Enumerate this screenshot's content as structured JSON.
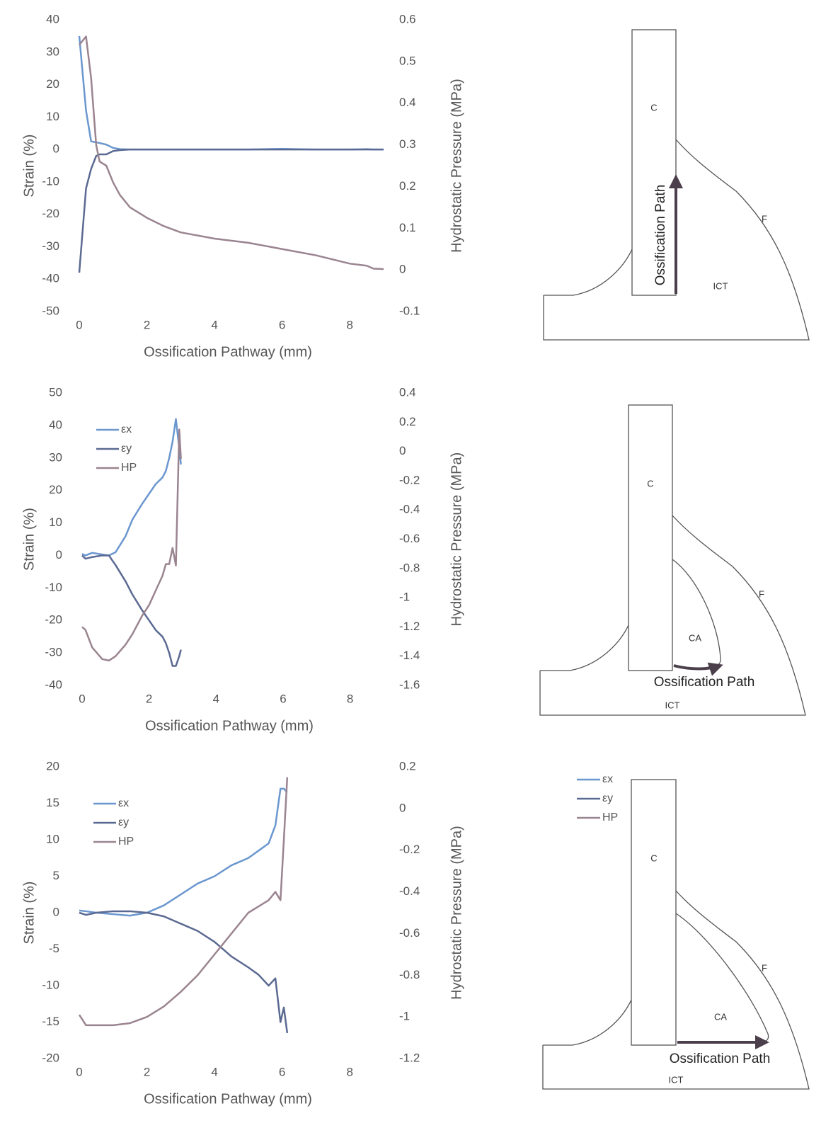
{
  "chart_data": [
    {
      "type": "line",
      "xlabel": "Ossification Pathway (mm)",
      "ylabel": "Strain (%)",
      "y2label": "Hydrostatic Pressure (MPa)",
      "x": [
        0,
        0.2,
        0.35,
        0.5,
        0.6,
        0.8,
        1,
        1.2,
        1.5,
        2,
        2.5,
        3,
        4,
        5,
        6,
        7,
        8,
        8.5,
        8.7,
        9
      ],
      "series": [
        {
          "color": "#6b97cf",
          "values": [
            35,
            12,
            2.5,
            2.2,
            2,
            1.5,
            0.5,
            0.1,
            0,
            0,
            0,
            0,
            0,
            0,
            0.2,
            0,
            0,
            0.1,
            0,
            0
          ]
        },
        {
          "color": "#5b6a92",
          "values": [
            -38,
            -12,
            -6,
            -2,
            -1.5,
            -1.5,
            -0.5,
            -0.2,
            0,
            0,
            0,
            0,
            0,
            0,
            0,
            0,
            0,
            0,
            0,
            0
          ]
        },
        {
          "color": "#9a8490",
          "axis": "y2",
          "values": [
            0.54,
            0.56,
            0.46,
            0.3,
            0.26,
            0.25,
            0.21,
            0.18,
            0.15,
            0.125,
            0.105,
            0.09,
            0.075,
            0.065,
            0.05,
            0.035,
            0.015,
            0.01,
            0.003,
            0.002
          ]
        }
      ],
      "xlim": [
        0,
        9
      ],
      "xticks": [
        0,
        2,
        4,
        6,
        8
      ],
      "ylim": [
        -50,
        40
      ],
      "yticks": [
        -50,
        -40,
        -30,
        -20,
        -10,
        0,
        10,
        20,
        30,
        40
      ],
      "y2lim": [
        -0.1,
        0.6
      ],
      "y2ticks": [
        -0.1,
        0,
        0.1,
        0.2,
        0.3,
        0.4,
        0.5,
        0.6
      ]
    },
    {
      "type": "line",
      "xlabel": "Ossification Pathway (mm)",
      "ylabel": "Strain (%)",
      "y2label": "Hydrostatic Pressure (MPa)",
      "legend": "upper left",
      "x": [
        0,
        0.1,
        0.3,
        0.6,
        0.8,
        1,
        1.3,
        1.5,
        1.8,
        2,
        2.2,
        2.4,
        2.5,
        2.6,
        2.7,
        2.8,
        2.9,
        2.95
      ],
      "series": [
        {
          "name": "εx",
          "color": "#6b97cf",
          "values": [
            0.5,
            0,
            0.8,
            0.3,
            0,
            1,
            6,
            11,
            16,
            19,
            22,
            24,
            26,
            30,
            35,
            42,
            33,
            28
          ]
        },
        {
          "name": "εy",
          "color": "#5b6a92",
          "values": [
            0,
            -1,
            -0.5,
            0,
            0,
            -3,
            -8,
            -12,
            -17,
            -20,
            -23,
            -25,
            -27,
            -30,
            -34,
            -34,
            -31,
            -29
          ]
        },
        {
          "name": "HP",
          "color": "#9a8490",
          "axis": "y2",
          "values": [
            -1.2,
            -1.22,
            -1.34,
            -1.42,
            -1.43,
            -1.4,
            -1.32,
            -1.25,
            -1.12,
            -1.05,
            -0.95,
            -0.85,
            -0.77,
            -0.77,
            -0.66,
            -0.78,
            0.15,
            -0.05
          ]
        }
      ],
      "xlim": [
        0,
        9
      ],
      "xticks": [
        0,
        2,
        4,
        6,
        8
      ],
      "ylim": [
        -40,
        50
      ],
      "yticks": [
        -40,
        -30,
        -20,
        -10,
        0,
        10,
        20,
        30,
        40,
        50
      ],
      "y2lim": [
        -1.6,
        0.4
      ],
      "y2ticks": [
        -1.6,
        -1.4,
        -1.2,
        -1,
        -0.8,
        -0.6,
        -0.4,
        -0.2,
        0,
        0.2,
        0.4
      ]
    },
    {
      "type": "line",
      "xlabel": "Ossification Pathway (mm)",
      "ylabel": "Strain (%)",
      "y2label": "Hydrostatic Pressure (MPa)",
      "legend": "upper left",
      "x": [
        0,
        0.2,
        0.5,
        1,
        1.5,
        2,
        2.5,
        3,
        3.5,
        4,
        4.5,
        5,
        5.3,
        5.6,
        5.8,
        5.95,
        6.05,
        6.15
      ],
      "series": [
        {
          "name": "εx",
          "color": "#6b97cf",
          "values": [
            0.3,
            0.2,
            0,
            -0.2,
            -0.4,
            0,
            1,
            2.5,
            4,
            5,
            6.5,
            7.5,
            8.5,
            9.5,
            12,
            17,
            17,
            16.5
          ]
        },
        {
          "name": "εy",
          "color": "#5b6a92",
          "values": [
            0,
            -0.3,
            0,
            0.2,
            0.2,
            0,
            -0.5,
            -1.5,
            -2.5,
            -4,
            -6,
            -7.5,
            -8.5,
            -10,
            -9,
            -15,
            -13,
            -16.5
          ]
        },
        {
          "name": "HP",
          "color": "#9a8490",
          "axis": "y2",
          "values": [
            -0.99,
            -1.04,
            -1.04,
            -1.04,
            -1.03,
            -1.0,
            -0.95,
            -0.88,
            -0.8,
            -0.7,
            -0.6,
            -0.5,
            -0.47,
            -0.44,
            -0.4,
            -0.44,
            -0.15,
            0.15
          ]
        }
      ],
      "xlim": [
        0,
        9
      ],
      "xticks": [
        0,
        2,
        4,
        6,
        8
      ],
      "ylim": [
        -20,
        20
      ],
      "yticks": [
        -20,
        -15,
        -10,
        -5,
        0,
        5,
        10,
        15,
        20
      ],
      "y2lim": [
        -1.2,
        0.2
      ],
      "y2ticks": [
        -1.2,
        -1,
        -0.8,
        -0.6,
        -0.4,
        -0.2,
        0,
        0.2
      ]
    }
  ],
  "diagrams": [
    {
      "c": "C",
      "f": "F",
      "ict": "ICT",
      "path": "Ossification Path"
    },
    {
      "c": "C",
      "f": "F",
      "ict": "ICT",
      "ca": "CA",
      "path": "Ossification Path"
    },
    {
      "c": "C",
      "f": "F",
      "ict": "ICT",
      "ca": "CA",
      "path": "Ossification Path",
      "legend": [
        "εx",
        "εy",
        "HP"
      ]
    }
  ]
}
